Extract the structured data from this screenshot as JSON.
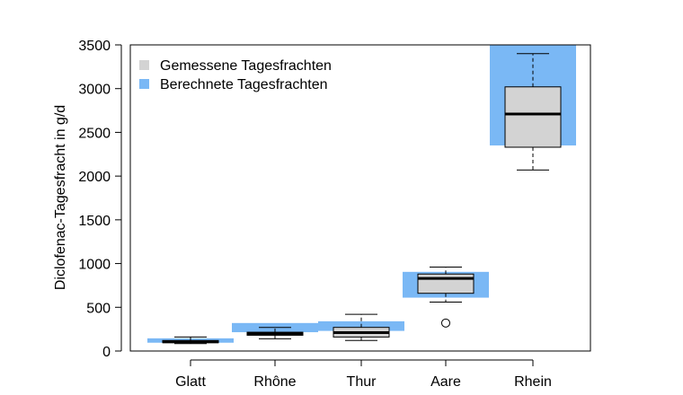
{
  "chart_data": {
    "type": "boxplot",
    "ylabel": "Diclofenac-Tagesfracht in g/d",
    "xlabel": "",
    "ylim": [
      0,
      3500
    ],
    "yticks": [
      0,
      500,
      1000,
      1500,
      2000,
      2500,
      3000,
      3500
    ],
    "ytick_labels": [
      "0",
      "500",
      "1000",
      "1500",
      "2000",
      "2500",
      "3000",
      "3500"
    ],
    "grid": false,
    "legend_position": "top-left",
    "legend": [
      {
        "label": "Gemessene Tagesfrachten",
        "color": "#d3d3d3"
      },
      {
        "label": "Berechnete Tagesfrachten",
        "color": "#7ab8f5"
      }
    ],
    "categories": [
      "Glatt",
      "Rhône",
      "Thur",
      "Aare",
      "Rhein"
    ],
    "measured": [
      {
        "category": "Glatt",
        "whisker_low": 85,
        "q1": 95,
        "median": 105,
        "q3": 120,
        "whisker_high": 160,
        "outliers": []
      },
      {
        "category": "Rhône",
        "whisker_low": 140,
        "q1": 180,
        "median": 200,
        "q3": 215,
        "whisker_high": 270,
        "outliers": []
      },
      {
        "category": "Thur",
        "whisker_low": 120,
        "q1": 160,
        "median": 210,
        "q3": 270,
        "whisker_high": 420,
        "outliers": []
      },
      {
        "category": "Aare",
        "whisker_low": 560,
        "q1": 660,
        "median": 830,
        "q3": 880,
        "whisker_high": 960,
        "outliers": [
          320
        ]
      },
      {
        "category": "Rhein",
        "whisker_low": 2070,
        "q1": 2330,
        "median": 2710,
        "q3": 3020,
        "whisker_high": 3400,
        "outliers": []
      }
    ],
    "calculated_ranges": [
      {
        "category": "Glatt",
        "low": 95,
        "high": 145
      },
      {
        "category": "Rhône",
        "low": 215,
        "high": 320
      },
      {
        "category": "Thur",
        "low": 230,
        "high": 340
      },
      {
        "category": "Aare",
        "low": 610,
        "high": 905
      },
      {
        "category": "Rhein",
        "low": 2350,
        "high": 3500
      }
    ],
    "colors": {
      "box_fill": "#d3d3d3",
      "calc_fill": "#7ab8f5",
      "stroke": "#000000"
    }
  }
}
